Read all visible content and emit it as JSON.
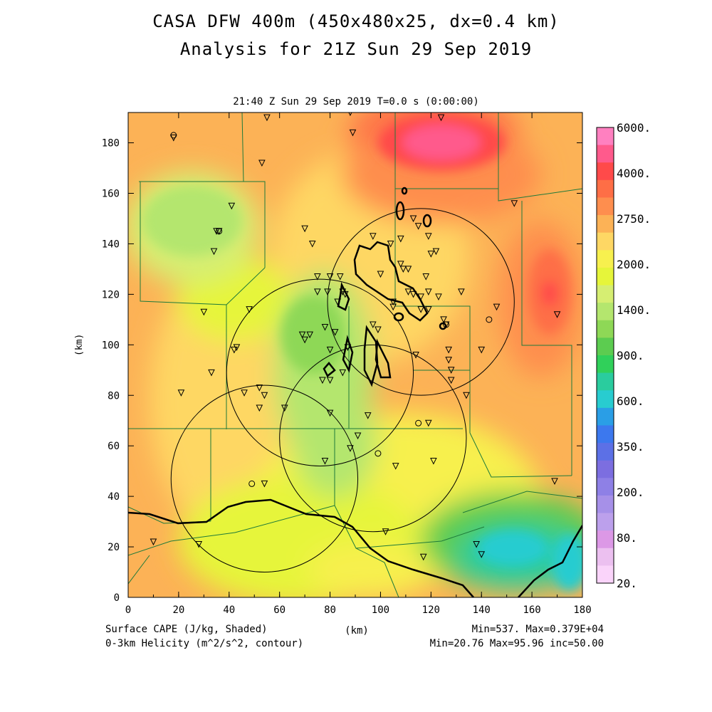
{
  "title_line1": "CASA DFW 400m (450x480x25, dx=0.4 km)",
  "title_line2": "Analysis for 21Z Sun 29 Sep 2019",
  "subtitle": "21:40 Z Sun 29 Sep 2019    T=0.0 s (0:00:00)",
  "x_axis": {
    "label": "(km)",
    "ticks": [
      "0",
      "20",
      "40",
      "60",
      "80",
      "100",
      "120",
      "140",
      "160",
      "180"
    ],
    "range": [
      0,
      180
    ]
  },
  "y_axis": {
    "label": "(km)",
    "ticks": [
      "0",
      "20",
      "40",
      "60",
      "80",
      "100",
      "120",
      "140",
      "160",
      "180"
    ],
    "range": [
      0,
      192
    ]
  },
  "footer": {
    "left1": "Surface CAPE (J/kg, Shaded)",
    "left2": "0-3km Helicity (m^2/s^2, contour)",
    "right1": "Min=537. Max=0.379E+04",
    "right2": "Min=20.76 Max=95.96 inc=50.00"
  },
  "colorbar": {
    "labels": [
      "6000.",
      "4000.",
      "2750.",
      "2000.",
      "1400.",
      "900.",
      "600.",
      "350.",
      "200.",
      "80.",
      "20."
    ],
    "colors": [
      "#ff80c0",
      "#ff5a8c",
      "#ff4a4a",
      "#fe6e46",
      "#fe8e4e",
      "#fcb256",
      "#fed764",
      "#f7f04e",
      "#e6f53a",
      "#d6ee72",
      "#b4e66e",
      "#8ed856",
      "#5ccc50",
      "#30d05a",
      "#2acc9e",
      "#28ccd0",
      "#2a9ee6",
      "#3c78ee",
      "#5c70e6",
      "#7c6ee0",
      "#8e80e6",
      "#a690e8",
      "#bca0ec",
      "#dc98e6",
      "#ecc0f0",
      "#fad4fa"
    ]
  },
  "radar_circles": [
    {
      "cx": 116,
      "cy": 117,
      "r": 37
    },
    {
      "cx": 76,
      "cy": 89,
      "r": 37
    },
    {
      "cx": 97,
      "cy": 63,
      "r": 37
    },
    {
      "cx": 54,
      "cy": 47,
      "r": 37
    }
  ],
  "stations": [
    [
      55,
      190
    ],
    [
      88,
      192
    ],
    [
      89,
      184
    ],
    [
      124,
      190
    ],
    [
      53,
      172
    ],
    [
      41,
      155
    ],
    [
      70,
      146
    ],
    [
      73,
      140
    ],
    [
      35,
      145
    ],
    [
      36,
      145
    ],
    [
      34,
      137
    ],
    [
      75,
      127
    ],
    [
      80,
      127
    ],
    [
      84,
      127
    ],
    [
      75,
      121
    ],
    [
      79,
      121
    ],
    [
      85,
      121
    ],
    [
      86,
      120
    ],
    [
      83,
      117
    ],
    [
      97,
      143
    ],
    [
      104,
      140
    ],
    [
      108,
      142
    ],
    [
      113,
      150
    ],
    [
      115,
      147
    ],
    [
      119,
      143
    ],
    [
      122,
      137
    ],
    [
      120,
      136
    ],
    [
      108,
      132
    ],
    [
      100,
      128
    ],
    [
      109,
      130
    ],
    [
      111,
      130
    ],
    [
      111,
      121
    ],
    [
      113,
      120
    ],
    [
      116,
      119
    ],
    [
      119,
      121
    ],
    [
      118,
      127
    ],
    [
      123,
      119
    ],
    [
      132,
      121
    ],
    [
      105,
      117
    ],
    [
      105,
      115
    ],
    [
      116,
      114
    ],
    [
      119,
      114
    ],
    [
      125,
      110
    ],
    [
      126,
      108
    ],
    [
      146,
      115
    ],
    [
      30,
      113
    ],
    [
      48,
      114
    ],
    [
      43,
      99
    ],
    [
      42,
      98
    ],
    [
      69,
      104
    ],
    [
      72,
      104
    ],
    [
      70,
      102
    ],
    [
      78,
      107
    ],
    [
      82,
      105
    ],
    [
      80,
      98
    ],
    [
      87,
      99
    ],
    [
      97,
      108
    ],
    [
      99,
      106
    ],
    [
      114,
      96
    ],
    [
      127,
      98
    ],
    [
      127,
      94
    ],
    [
      128,
      90
    ],
    [
      140,
      98
    ],
    [
      128,
      86
    ],
    [
      77,
      86
    ],
    [
      80,
      86
    ],
    [
      85,
      89
    ],
    [
      33,
      89
    ],
    [
      21,
      81
    ],
    [
      46,
      81
    ],
    [
      52,
      83
    ],
    [
      54,
      80
    ],
    [
      52,
      75
    ],
    [
      62,
      75
    ],
    [
      80,
      73
    ],
    [
      95,
      72
    ],
    [
      119,
      69
    ],
    [
      134,
      80
    ],
    [
      88,
      59
    ],
    [
      78,
      54
    ],
    [
      91,
      64
    ],
    [
      106,
      52
    ],
    [
      121,
      54
    ],
    [
      153,
      156
    ],
    [
      170,
      112
    ],
    [
      169,
      46
    ],
    [
      138,
      21
    ],
    [
      140,
      17
    ],
    [
      102,
      26
    ],
    [
      117,
      16
    ],
    [
      10,
      22
    ],
    [
      28,
      21
    ],
    [
      54,
      45
    ],
    [
      18,
      182
    ]
  ],
  "open_circle_stations": [
    [
      18,
      183
    ],
    [
      36,
      145
    ],
    [
      99,
      57
    ],
    [
      49,
      45
    ],
    [
      126,
      108
    ],
    [
      143,
      110
    ],
    [
      115,
      69
    ]
  ]
}
